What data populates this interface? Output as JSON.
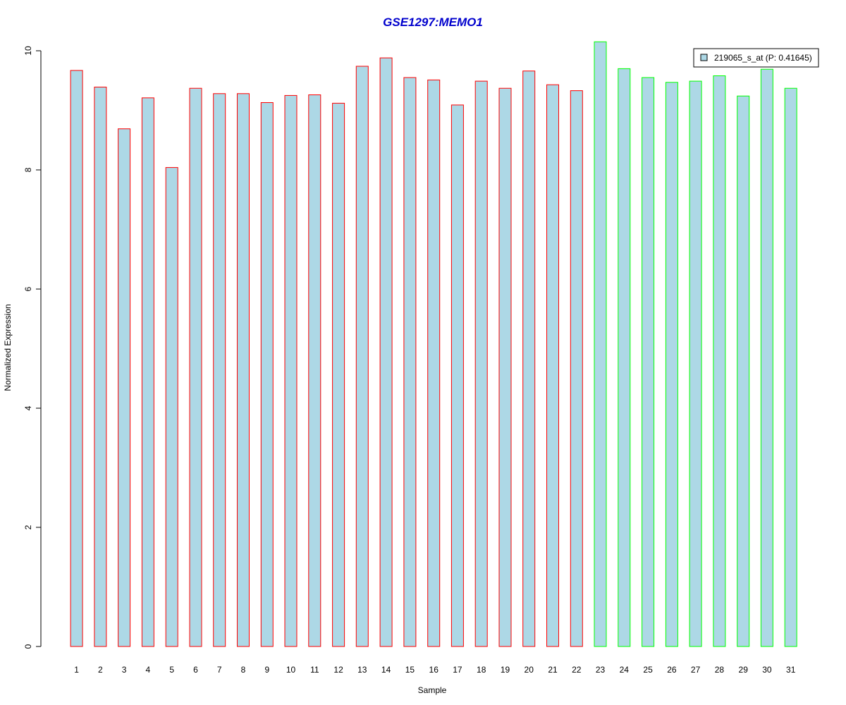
{
  "chart_data": {
    "type": "bar",
    "title": "GSE1297:MEMO1",
    "xlabel": "Sample",
    "ylabel": "Normalized Expression",
    "ylim": [
      0,
      10
    ],
    "y_ticks": [
      0,
      2,
      4,
      6,
      8,
      10
    ],
    "categories": [
      "1",
      "2",
      "3",
      "4",
      "5",
      "6",
      "7",
      "8",
      "9",
      "10",
      "11",
      "12",
      "13",
      "14",
      "15",
      "16",
      "17",
      "18",
      "19",
      "20",
      "21",
      "22",
      "23",
      "24",
      "25",
      "26",
      "27",
      "28",
      "29",
      "30",
      "31"
    ],
    "series": [
      {
        "name": "219065_s_at (P: 0.41645)",
        "values": [
          9.67,
          9.39,
          8.69,
          9.21,
          8.04,
          9.37,
          9.28,
          9.28,
          9.13,
          9.25,
          9.26,
          9.12,
          9.74,
          9.88,
          9.55,
          9.51,
          9.09,
          9.49,
          9.37,
          9.66,
          9.43,
          9.33,
          10.15,
          9.7,
          9.55,
          9.47,
          9.49,
          9.58,
          9.24,
          9.69,
          9.37
        ],
        "fill": "#ADD8E6"
      }
    ],
    "groups": [
      {
        "from": 1,
        "to": 22,
        "border_color": "#FF0000"
      },
      {
        "from": 23,
        "to": 31,
        "border_color": "#00FF00"
      }
    ],
    "title_color": "#0000CD",
    "legend_position": "top-right",
    "grid": false
  }
}
